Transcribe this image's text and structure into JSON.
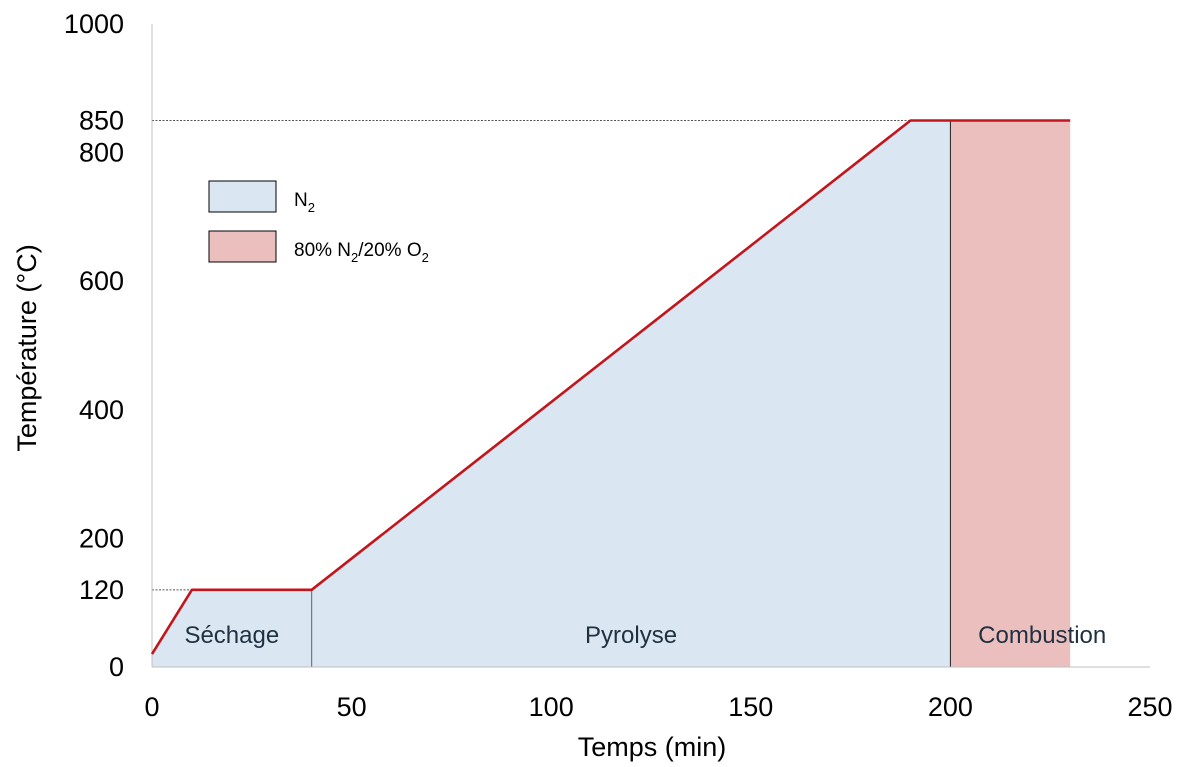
{
  "chart_data": {
    "type": "area",
    "xlabel": "Temps (min)",
    "ylabel": "Température (°C)",
    "xlim": [
      0,
      250
    ],
    "ylim": [
      0,
      1000
    ],
    "x_ticks": [
      0,
      50,
      100,
      150,
      200,
      250
    ],
    "y_ticks": [
      0,
      120,
      200,
      400,
      600,
      800,
      850,
      1000
    ],
    "reference_lines": [
      120,
      850
    ],
    "series": [
      {
        "x": [
          0,
          10,
          40,
          190,
          230
        ],
        "y": [
          20,
          120,
          120,
          850,
          850
        ]
      }
    ],
    "regions": [
      {
        "label": "Séchage",
        "x_start": 0,
        "x_end": 40,
        "atmosphere": "N2"
      },
      {
        "label": "Pyrolyse",
        "x_start": 40,
        "x_end": 200,
        "atmosphere": "N2"
      },
      {
        "label": "Combustion",
        "x_start": 200,
        "x_end": 230,
        "atmosphere": "80% N2/20% O2"
      }
    ],
    "legend": {
      "placement": "top-left",
      "entries": [
        {
          "key": "N2",
          "label_main": "N",
          "label_sub": "2",
          "color": "#dae6f2"
        },
        {
          "key": "80% N2/20% O2",
          "parts": [
            "80% N",
            "2",
            "/20% O",
            "2"
          ],
          "color": "#ecbfbf"
        }
      ]
    },
    "colors": {
      "n2_fill": "#dae6f2",
      "o2_fill": "#ecbfbf",
      "line": "#c0161c",
      "axis": "#bfbfbf",
      "region_label": "#1f3040"
    }
  }
}
